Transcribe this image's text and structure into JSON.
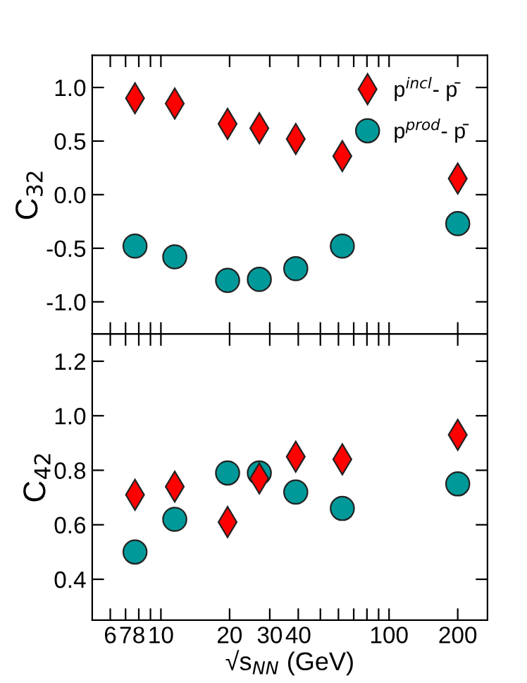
{
  "chart_data": [
    {
      "type": "scatter",
      "ylabel": "C$_{32}$",
      "x": [
        7.7,
        11.5,
        19.6,
        27,
        39,
        62.4,
        200
      ],
      "xlim": [
        5,
        270
      ],
      "xticks": [
        6,
        7,
        8,
        {
          "value": 9,
          "label": null
        },
        10,
        20,
        30,
        40,
        {
          "value": 50,
          "label": null
        },
        {
          "value": 60,
          "label": null
        },
        {
          "value": 70,
          "label": null
        },
        {
          "value": 80,
          "label": null
        },
        {
          "value": 90,
          "label": null
        },
        100,
        200
      ],
      "ylim": [
        -1.3,
        1.3
      ],
      "yticks": [
        {
          "value": -1.0,
          "label": "-1.0"
        },
        {
          "value": -0.5,
          "label": "-0.5"
        },
        {
          "value": 0.0,
          "label": "0.0"
        },
        {
          "value": 0.5,
          "label": "0.5"
        },
        {
          "value": 1.0,
          "label": "1.0"
        }
      ],
      "log": "x",
      "grid": false,
      "legend": "top right",
      "tick_labels": "y",
      "series": [
        {
          "name": "p$^{incl}$- p̄",
          "color": "#ff0000",
          "marker": "diamond",
          "values": [
            0.9,
            0.85,
            0.66,
            0.62,
            0.52,
            0.36,
            0.15
          ]
        },
        {
          "name": "p$^{prod}$- p̄",
          "color": "#009999",
          "marker": "circle",
          "values": [
            -0.48,
            -0.58,
            -0.8,
            -0.79,
            -0.69,
            -0.48,
            -0.27
          ]
        }
      ]
    },
    {
      "type": "scatter",
      "ylabel": "C$_{42}$",
      "xlabel": "√s$_{NN}$ (GeV)",
      "x": [
        7.7,
        11.5,
        19.6,
        27,
        39,
        62.4,
        200
      ],
      "xlim": [
        5,
        270
      ],
      "xticks": [
        6,
        7,
        8,
        {
          "value": 9,
          "label": null
        },
        10,
        20,
        30,
        40,
        {
          "value": 50,
          "label": null
        },
        {
          "value": 60,
          "label": null
        },
        {
          "value": 70,
          "label": null
        },
        {
          "value": 80,
          "label": null
        },
        {
          "value": 90,
          "label": null
        },
        100,
        200
      ],
      "ylim": [
        0.25,
        1.3
      ],
      "yticks": [
        0.4,
        0.6,
        0.8,
        {
          "value": 1.0,
          "label": "1.0"
        },
        1.2
      ],
      "log": "x",
      "grid": false,
      "legend": false,
      "series": [
        {
          "color": "#ff0000",
          "marker": "diamond",
          "values": [
            0.71,
            0.74,
            0.61,
            0.77,
            0.85,
            0.84,
            0.93
          ]
        },
        {
          "color": "#009999",
          "marker": "circle",
          "values": [
            0.5,
            0.62,
            0.79,
            0.79,
            0.72,
            0.66,
            0.75
          ]
        }
      ]
    }
  ]
}
